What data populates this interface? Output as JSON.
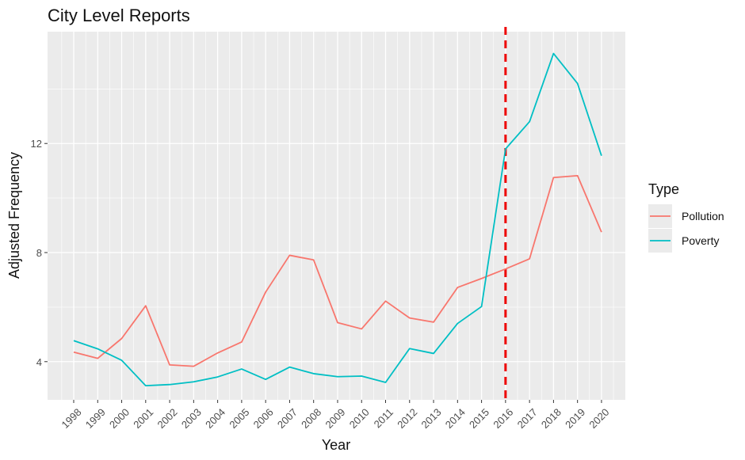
{
  "chart_data": {
    "type": "line",
    "title": "City Level Reports",
    "xlabel": "Year",
    "ylabel": "Adjusted Frequency",
    "x": [
      "1998",
      "1999",
      "2000",
      "2001",
      "2002",
      "2003",
      "2004",
      "2005",
      "2006",
      "2007",
      "2008",
      "2009",
      "2010",
      "2011",
      "2012",
      "2013",
      "2014",
      "2015",
      "2016",
      "2017",
      "2018",
      "2019",
      "2020"
    ],
    "series": [
      {
        "name": "Pollution",
        "color": "#f8766d",
        "values": [
          4.35,
          4.12,
          4.85,
          6.05,
          3.88,
          3.83,
          4.32,
          4.72,
          6.55,
          7.9,
          7.73,
          5.43,
          5.2,
          6.22,
          5.6,
          5.45,
          6.72,
          7.05,
          7.4,
          7.77,
          10.75,
          10.82,
          8.75
        ]
      },
      {
        "name": "Poverty",
        "color": "#00bfc4",
        "values": [
          4.77,
          4.47,
          4.05,
          3.12,
          3.16,
          3.26,
          3.44,
          3.73,
          3.35,
          3.8,
          3.56,
          3.45,
          3.47,
          3.24,
          4.48,
          4.3,
          5.4,
          6.02,
          11.8,
          12.8,
          15.3,
          14.2,
          11.55
        ]
      }
    ],
    "ylim": [
      2.6,
      16.1
    ],
    "yticks": [
      4,
      8,
      12
    ],
    "grid": true,
    "legend": {
      "title": "Type",
      "position": "right"
    },
    "reference_line": {
      "x": "2016",
      "style": "dashed",
      "color": "#ee0000"
    },
    "colors": {
      "panel_background": "#ebebeb",
      "grid": "#ffffff"
    }
  }
}
